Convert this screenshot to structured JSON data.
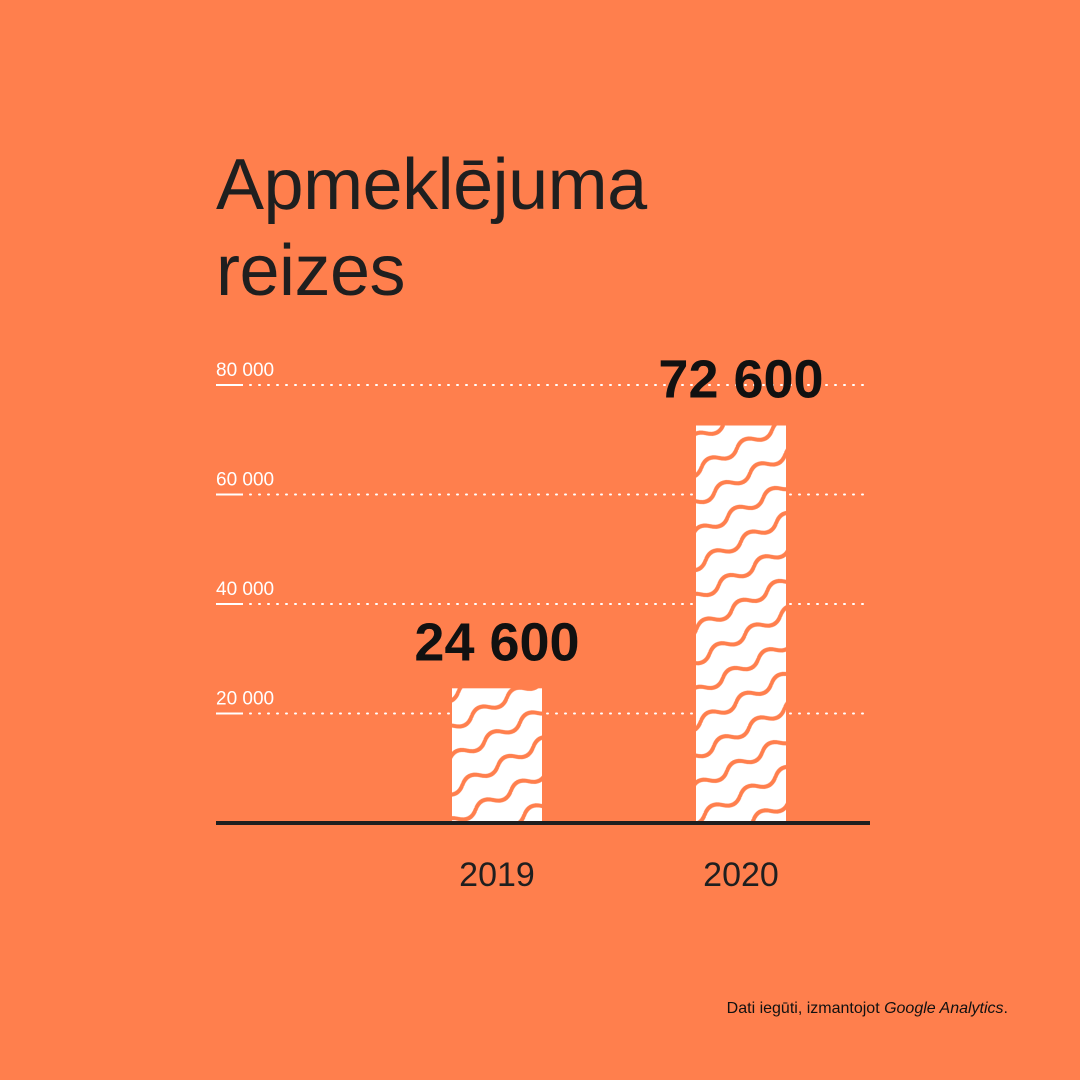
{
  "footnote": {
    "text": "Dati iegūti, izmantojot ",
    "source": "Google Analytics",
    "end": "."
  },
  "colors": {
    "background": "#FF7F4D",
    "bar_fill": "#FFFFFF",
    "bar_pattern": "#FF7F4D",
    "text_dark": "#1F1F1F",
    "tick_text": "#FFFFFF",
    "axis_line": "#1F1F1F"
  },
  "chart_data": {
    "type": "bar",
    "title": "Apmeklējuma reizes",
    "categories": [
      "2019",
      "2020"
    ],
    "values": [
      24600,
      72600
    ],
    "value_labels": [
      "24 600",
      "72 600"
    ],
    "yticks": [
      20000,
      40000,
      60000,
      80000
    ],
    "ytick_labels": [
      "20 000",
      "40 000",
      "60 000",
      "80 000"
    ],
    "ylim": [
      0,
      80000
    ],
    "xlabel": "",
    "ylabel": "",
    "grid": true,
    "legend": "none"
  }
}
